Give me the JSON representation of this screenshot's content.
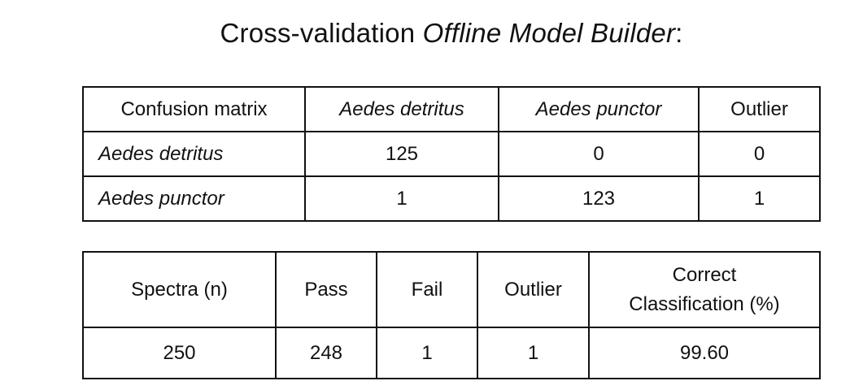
{
  "title": {
    "prefix": "Cross-validation ",
    "italic": "Offline Model Builder",
    "suffix": ":"
  },
  "confusion_matrix": {
    "header": [
      "Confusion matrix",
      "Aedes detritus",
      "Aedes punctor",
      "Outlier"
    ],
    "rows": [
      {
        "label": "Aedes detritus",
        "values": [
          "125",
          "0",
          "0"
        ]
      },
      {
        "label": "Aedes punctor",
        "values": [
          "1",
          "123",
          "1"
        ]
      }
    ]
  },
  "summary": {
    "header": [
      "Spectra (n)",
      "Pass",
      "Fail",
      "Outlier"
    ],
    "header_last_line1": "Correct",
    "header_last_line2": "Classification (%)",
    "values": [
      "250",
      "248",
      "1",
      "1",
      "99.60"
    ]
  }
}
